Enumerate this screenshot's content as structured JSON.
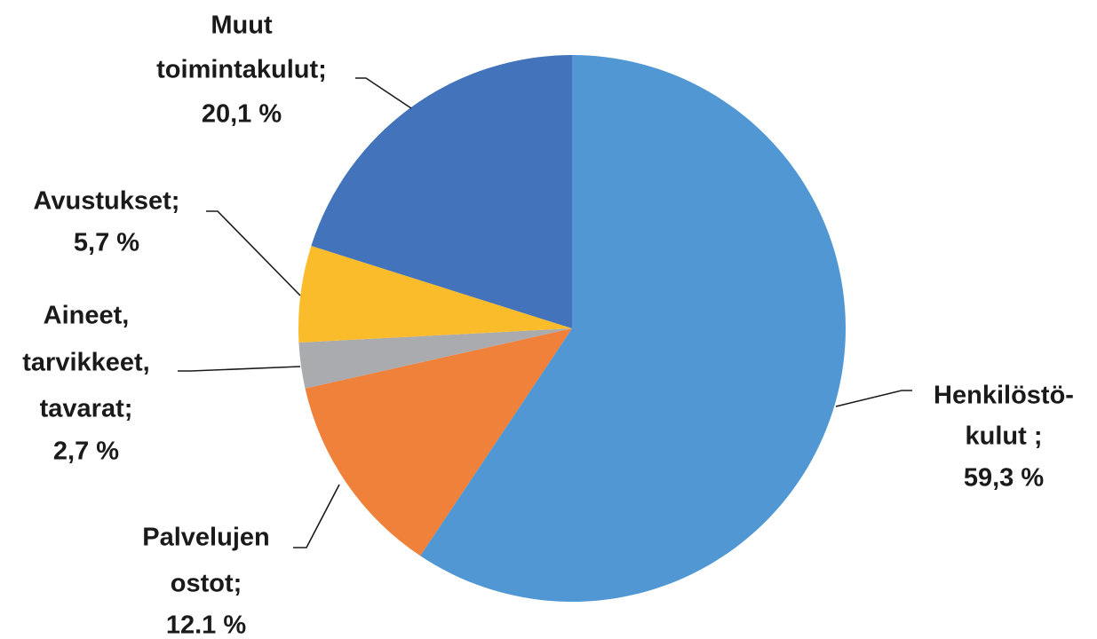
{
  "chart_data": {
    "type": "pie",
    "categories": [
      [
        "Henkilöstö-",
        "kulut ;"
      ],
      [
        "Palvelujen",
        "ostot;"
      ],
      [
        "Aineet,",
        "tarvikkeet,",
        "tavarat;"
      ],
      [
        "Avustukset;"
      ],
      [
        "Muut",
        "toimintakulut;"
      ]
    ],
    "values": [
      59.3,
      12.1,
      2.7,
      5.7,
      20.1
    ],
    "value_labels": [
      "59,3 %",
      "12.1 %",
      "2,7 %",
      "5,7 %",
      "20,1 %"
    ],
    "colors": [
      "#5197d3",
      "#f0813b",
      "#a9abae",
      "#fbbc2b",
      "#4273bb"
    ]
  }
}
